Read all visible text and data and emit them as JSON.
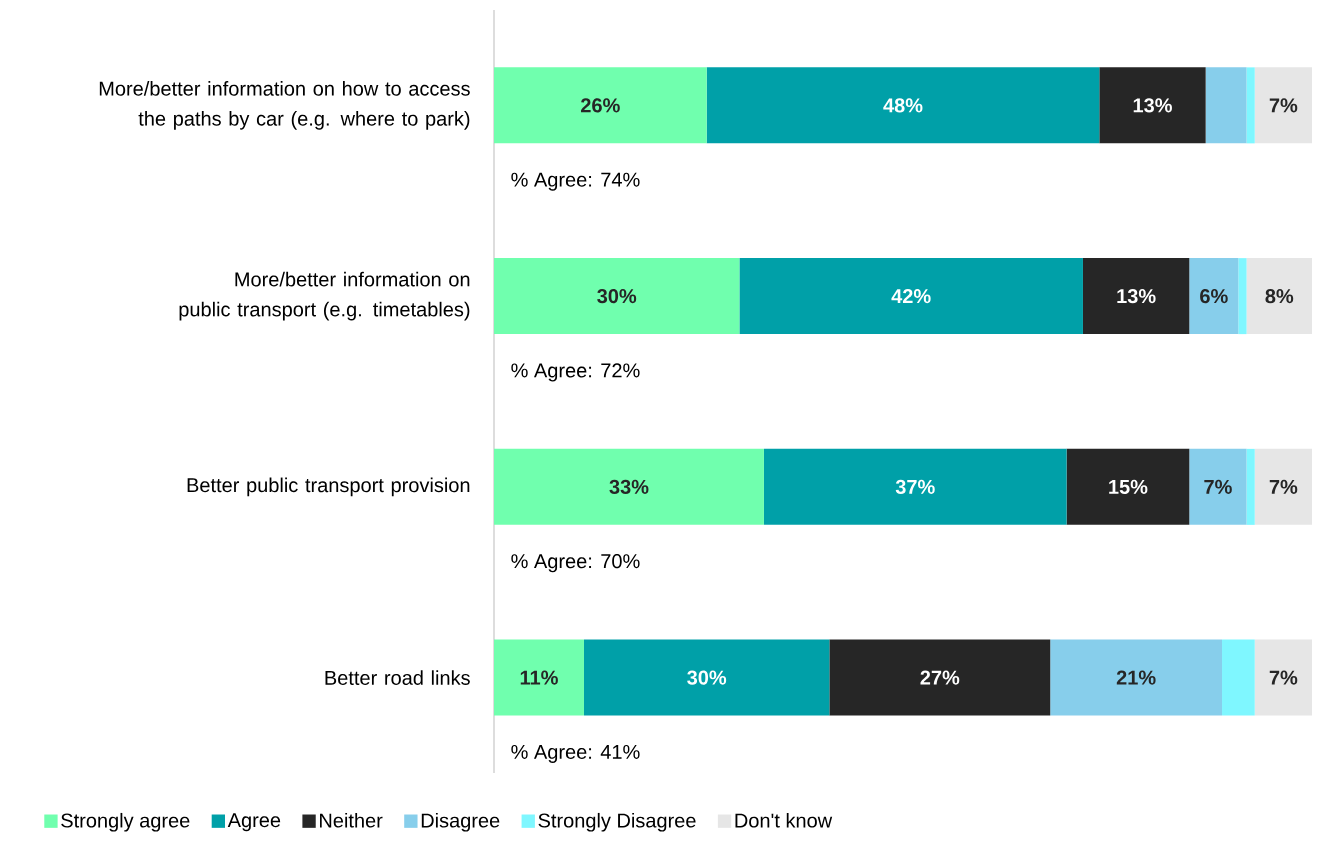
{
  "chart_data": {
    "type": "bar",
    "orientation": "horizontal",
    "stacked": true,
    "categories": [
      "More/better information on how to access the paths by car (e.g. where to park)",
      "More/better information on public transport (e.g. timetables)",
      "Better public transport provision",
      "Better road links"
    ],
    "series": [
      {
        "name": "Strongly agree",
        "color": "#70ffae",
        "values": [
          26,
          30,
          33,
          11
        ],
        "value_labels": [
          "26%",
          "30%",
          "33%",
          "11%"
        ]
      },
      {
        "name": "Agree",
        "color": "#00a0a8",
        "values": [
          48,
          42,
          37,
          30
        ],
        "value_labels": [
          "48%",
          "42%",
          "37%",
          "30%"
        ]
      },
      {
        "name": "Neither",
        "color": "#262626",
        "values": [
          13,
          13,
          15,
          27
        ],
        "value_labels": [
          "13%",
          "13%",
          "15%",
          "27%"
        ]
      },
      {
        "name": "Disagree",
        "color": "#87ceeb",
        "values": [
          5,
          6,
          7,
          21
        ],
        "value_labels": [
          null,
          "6%",
          "7%",
          "21%"
        ]
      },
      {
        "name": "Strongly Disagree",
        "color": "#7ff7ff",
        "values": [
          1,
          1,
          1,
          4
        ],
        "value_labels": [
          null,
          null,
          null,
          null
        ]
      },
      {
        "name": "Don't know",
        "color": "#e6e6e6",
        "values": [
          7,
          8,
          7,
          7
        ],
        "value_labels": [
          "7%",
          "8%",
          "7%",
          "7%"
        ]
      }
    ],
    "tick_labels": "y",
    "legend": "bottom",
    "annotations": [
      "% Agree: 74%",
      "% Agree: 72%",
      "% Agree: 70%",
      "% Agree: 41%"
    ]
  }
}
